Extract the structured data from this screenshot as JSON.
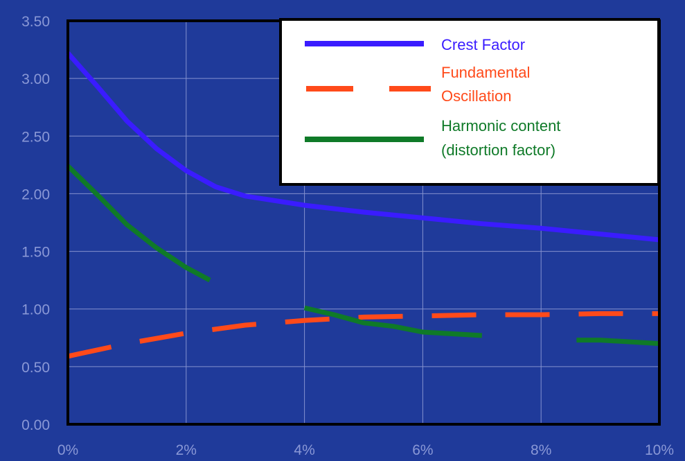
{
  "chart_data": {
    "type": "line",
    "title": "",
    "xlabel": "",
    "ylabel": "",
    "x_ticks": [
      "0%",
      "2%",
      "4%",
      "6%",
      "8%",
      "10%"
    ],
    "y_ticks": [
      "0.00",
      "0.50",
      "1.00",
      "1.50",
      "2.00",
      "2.50",
      "3.00",
      "3.50"
    ],
    "xlim": [
      0,
      10
    ],
    "ylim": [
      0,
      3.5
    ],
    "grid": true,
    "legend_position": "top-right",
    "colors": {
      "background": "#1f3a9a",
      "plot_background": "#1f3a9a",
      "grid": "#8592cf",
      "tick_label": "#8a98d6",
      "axis": "#000000",
      "legend_background": "#ffffff",
      "crest": "#3a1cff",
      "fundamental": "#ff4a1a",
      "harmonic": "#0f7a28"
    },
    "series": [
      {
        "name": "Crest Factor",
        "style": "solid",
        "color": "#3a1cff",
        "points": [
          [
            0,
            3.22
          ],
          [
            0.5,
            2.93
          ],
          [
            1,
            2.63
          ],
          [
            1.5,
            2.39
          ],
          [
            2,
            2.2
          ],
          [
            2.5,
            2.06
          ],
          [
            3,
            1.98
          ],
          [
            4,
            1.9
          ],
          [
            5,
            1.84
          ],
          [
            6,
            1.79
          ],
          [
            7,
            1.74
          ],
          [
            8,
            1.7
          ],
          [
            9,
            1.65
          ],
          [
            10,
            1.6
          ]
        ]
      },
      {
        "name": "Fundamental Oscillation",
        "style": "dashed",
        "color": "#ff4a1a",
        "points": [
          [
            0,
            0.59
          ],
          [
            1,
            0.7
          ],
          [
            2,
            0.79
          ],
          [
            3,
            0.86
          ],
          [
            4,
            0.9
          ],
          [
            5,
            0.93
          ],
          [
            6,
            0.94
          ],
          [
            7,
            0.95
          ],
          [
            8,
            0.95
          ],
          [
            9,
            0.96
          ],
          [
            10,
            0.96
          ]
        ]
      },
      {
        "name": "Harmonic content (distortion factor)",
        "style": "solid",
        "color": "#0f7a28",
        "segments": [
          [
            [
              0,
              2.24
            ],
            [
              0.5,
              1.99
            ],
            [
              1,
              1.73
            ],
            [
              1.5,
              1.53
            ],
            [
              2,
              1.36
            ],
            [
              2.4,
              1.25
            ]
          ],
          [
            [
              4,
              1.01
            ],
            [
              4.5,
              0.95
            ],
            [
              5,
              0.88
            ],
            [
              5.5,
              0.85
            ],
            [
              6,
              0.8
            ],
            [
              7,
              0.77
            ]
          ],
          [
            [
              8.6,
              0.73
            ],
            [
              9,
              0.73
            ],
            [
              10,
              0.7
            ]
          ]
        ]
      }
    ],
    "legend": {
      "entries": [
        {
          "lines": [
            "Crest Factor"
          ],
          "series": 0
        },
        {
          "lines": [
            "Fundamental",
            "Oscillation"
          ],
          "series": 1
        },
        {
          "lines": [
            "Harmonic content",
            "(distortion factor)"
          ],
          "series": 2
        }
      ]
    }
  }
}
